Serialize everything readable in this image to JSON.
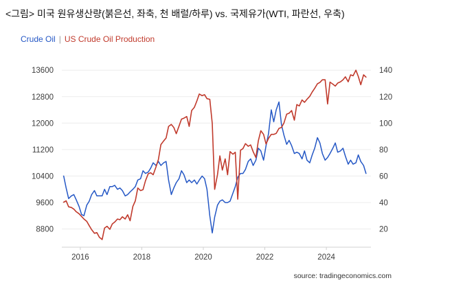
{
  "header": {
    "title": "<그림> 미국 원유생산량(붉은선, 좌축, 천 배럴/하루) vs. 국제유가(WTI, 파란선, 우축)"
  },
  "legend": {
    "crude_oil": "Crude Oil",
    "separator": "|",
    "production": "US Crude Oil Production"
  },
  "footer": {
    "source": "source: tradingeconomics.com"
  },
  "colors": {
    "wti_blue": "#2457c5",
    "production_red": "#c0392b",
    "grid": "#ececec",
    "axis_line": "#d0d0d0",
    "axis_text": "#3c3c3c",
    "legend_separator": "#9a9a9a"
  },
  "chart_data": {
    "type": "line",
    "title": "US Crude Oil Production vs Crude Oil (WTI)",
    "grid": "horizontal",
    "legend_position": "top-left",
    "x_axis": {
      "ticks": [
        2016,
        2018,
        2020,
        2022,
        2024
      ],
      "domain": [
        2015.4,
        2025.45
      ]
    },
    "left_axis": {
      "ticks": [
        8800,
        9600,
        10400,
        11200,
        12000,
        12800,
        13600
      ],
      "domain": [
        8250,
        13750
      ]
    },
    "right_axis": {
      "ticks": [
        20,
        40,
        60,
        80,
        100,
        120,
        140
      ],
      "domain": [
        6.25,
        143.75
      ]
    },
    "series": [
      {
        "name": "Crude Oil",
        "axis": "right",
        "color_key": "wti_blue",
        "points": [
          [
            2015.46,
            60
          ],
          [
            2015.54,
            51
          ],
          [
            2015.62,
            43
          ],
          [
            2015.71,
            45
          ],
          [
            2015.79,
            46
          ],
          [
            2015.87,
            42
          ],
          [
            2015.96,
            37
          ],
          [
            2016.04,
            31
          ],
          [
            2016.12,
            30
          ],
          [
            2016.21,
            38
          ],
          [
            2016.29,
            41
          ],
          [
            2016.37,
            46
          ],
          [
            2016.46,
            49
          ],
          [
            2016.54,
            45
          ],
          [
            2016.62,
            45
          ],
          [
            2016.71,
            45
          ],
          [
            2016.79,
            50
          ],
          [
            2016.87,
            46
          ],
          [
            2016.96,
            52
          ],
          [
            2017.04,
            52
          ],
          [
            2017.12,
            53
          ],
          [
            2017.21,
            50
          ],
          [
            2017.29,
            51
          ],
          [
            2017.37,
            49
          ],
          [
            2017.46,
            45
          ],
          [
            2017.54,
            46
          ],
          [
            2017.62,
            48
          ],
          [
            2017.71,
            50
          ],
          [
            2017.79,
            52
          ],
          [
            2017.87,
            57
          ],
          [
            2017.96,
            58
          ],
          [
            2018.04,
            64
          ],
          [
            2018.12,
            62
          ],
          [
            2018.21,
            63
          ],
          [
            2018.29,
            66
          ],
          [
            2018.37,
            70
          ],
          [
            2018.46,
            68
          ],
          [
            2018.54,
            71
          ],
          [
            2018.62,
            68
          ],
          [
            2018.71,
            70
          ],
          [
            2018.79,
            71
          ],
          [
            2018.87,
            57
          ],
          [
            2018.96,
            46
          ],
          [
            2019.04,
            51
          ],
          [
            2019.12,
            55
          ],
          [
            2019.21,
            58
          ],
          [
            2019.29,
            64
          ],
          [
            2019.37,
            61
          ],
          [
            2019.46,
            55
          ],
          [
            2019.54,
            57
          ],
          [
            2019.62,
            55
          ],
          [
            2019.71,
            57
          ],
          [
            2019.79,
            54
          ],
          [
            2019.87,
            57
          ],
          [
            2019.96,
            60
          ],
          [
            2020.04,
            58
          ],
          [
            2020.12,
            50
          ],
          [
            2020.21,
            30
          ],
          [
            2020.29,
            17
          ],
          [
            2020.37,
            29
          ],
          [
            2020.46,
            38
          ],
          [
            2020.54,
            41
          ],
          [
            2020.62,
            42
          ],
          [
            2020.71,
            40
          ],
          [
            2020.79,
            40
          ],
          [
            2020.87,
            41
          ],
          [
            2020.96,
            47
          ],
          [
            2021.04,
            52
          ],
          [
            2021.12,
            59
          ],
          [
            2021.21,
            62
          ],
          [
            2021.29,
            62
          ],
          [
            2021.37,
            65
          ],
          [
            2021.46,
            71
          ],
          [
            2021.54,
            73
          ],
          [
            2021.62,
            68
          ],
          [
            2021.71,
            72
          ],
          [
            2021.79,
            81
          ],
          [
            2021.87,
            79
          ],
          [
            2021.96,
            72
          ],
          [
            2022.04,
            83
          ],
          [
            2022.12,
            92
          ],
          [
            2022.21,
            110
          ],
          [
            2022.29,
            101
          ],
          [
            2022.37,
            110
          ],
          [
            2022.46,
            116
          ],
          [
            2022.54,
            99
          ],
          [
            2022.62,
            91
          ],
          [
            2022.71,
            84
          ],
          [
            2022.79,
            87
          ],
          [
            2022.87,
            83
          ],
          [
            2022.96,
            77
          ],
          [
            2023.04,
            78
          ],
          [
            2023.12,
            77
          ],
          [
            2023.21,
            73
          ],
          [
            2023.29,
            79
          ],
          [
            2023.37,
            72
          ],
          [
            2023.46,
            70
          ],
          [
            2023.54,
            76
          ],
          [
            2023.62,
            81
          ],
          [
            2023.71,
            89
          ],
          [
            2023.79,
            85
          ],
          [
            2023.87,
            77
          ],
          [
            2023.96,
            72
          ],
          [
            2024.04,
            74
          ],
          [
            2024.12,
            77
          ],
          [
            2024.21,
            81
          ],
          [
            2024.29,
            85
          ],
          [
            2024.37,
            78
          ],
          [
            2024.46,
            79
          ],
          [
            2024.54,
            81
          ],
          [
            2024.62,
            75
          ],
          [
            2024.71,
            69
          ],
          [
            2024.79,
            72
          ],
          [
            2024.87,
            69
          ],
          [
            2024.96,
            70
          ],
          [
            2025.04,
            76
          ],
          [
            2025.12,
            71
          ],
          [
            2025.21,
            68
          ],
          [
            2025.29,
            62
          ]
        ]
      },
      {
        "name": "US Crude Oil Production",
        "axis": "left",
        "color_key": "production_red",
        "points": [
          [
            2015.46,
            9610
          ],
          [
            2015.54,
            9650
          ],
          [
            2015.62,
            9470
          ],
          [
            2015.71,
            9450
          ],
          [
            2015.79,
            9400
          ],
          [
            2015.87,
            9320
          ],
          [
            2015.96,
            9260
          ],
          [
            2016.04,
            9180
          ],
          [
            2016.12,
            9100
          ],
          [
            2016.21,
            9030
          ],
          [
            2016.29,
            8900
          ],
          [
            2016.37,
            8780
          ],
          [
            2016.46,
            8670
          ],
          [
            2016.54,
            8690
          ],
          [
            2016.62,
            8550
          ],
          [
            2016.71,
            8480
          ],
          [
            2016.79,
            8830
          ],
          [
            2016.87,
            8880
          ],
          [
            2016.96,
            8790
          ],
          [
            2017.04,
            8950
          ],
          [
            2017.12,
            9010
          ],
          [
            2017.21,
            9100
          ],
          [
            2017.29,
            9080
          ],
          [
            2017.37,
            9170
          ],
          [
            2017.46,
            9100
          ],
          [
            2017.54,
            9230
          ],
          [
            2017.62,
            9050
          ],
          [
            2017.71,
            9480
          ],
          [
            2017.79,
            9650
          ],
          [
            2017.87,
            10040
          ],
          [
            2017.96,
            9960
          ],
          [
            2018.04,
            9990
          ],
          [
            2018.12,
            10260
          ],
          [
            2018.21,
            10470
          ],
          [
            2018.29,
            10500
          ],
          [
            2018.37,
            10440
          ],
          [
            2018.46,
            10670
          ],
          [
            2018.54,
            10900
          ],
          [
            2018.62,
            11350
          ],
          [
            2018.71,
            11460
          ],
          [
            2018.79,
            11550
          ],
          [
            2018.87,
            11900
          ],
          [
            2018.96,
            11960
          ],
          [
            2019.04,
            11870
          ],
          [
            2019.12,
            11680
          ],
          [
            2019.21,
            11910
          ],
          [
            2019.29,
            12120
          ],
          [
            2019.37,
            12150
          ],
          [
            2019.46,
            12200
          ],
          [
            2019.54,
            11900
          ],
          [
            2019.62,
            12380
          ],
          [
            2019.71,
            12480
          ],
          [
            2019.79,
            12670
          ],
          [
            2019.87,
            12880
          ],
          [
            2019.96,
            12830
          ],
          [
            2020.04,
            12860
          ],
          [
            2020.12,
            12740
          ],
          [
            2020.21,
            12720
          ],
          [
            2020.29,
            11990
          ],
          [
            2020.37,
            10000
          ],
          [
            2020.46,
            10440
          ],
          [
            2020.54,
            11010
          ],
          [
            2020.62,
            10580
          ],
          [
            2020.71,
            10920
          ],
          [
            2020.79,
            10440
          ],
          [
            2020.87,
            11140
          ],
          [
            2020.96,
            11060
          ],
          [
            2021.04,
            11120
          ],
          [
            2021.12,
            9700
          ],
          [
            2021.21,
            11180
          ],
          [
            2021.29,
            11230
          ],
          [
            2021.37,
            11380
          ],
          [
            2021.46,
            11300
          ],
          [
            2021.54,
            11340
          ],
          [
            2021.62,
            11140
          ],
          [
            2021.71,
            10960
          ],
          [
            2021.79,
            11470
          ],
          [
            2021.87,
            11770
          ],
          [
            2021.96,
            11660
          ],
          [
            2022.04,
            11370
          ],
          [
            2022.12,
            11540
          ],
          [
            2022.21,
            11660
          ],
          [
            2022.29,
            11660
          ],
          [
            2022.37,
            11690
          ],
          [
            2022.46,
            11840
          ],
          [
            2022.54,
            11870
          ],
          [
            2022.62,
            12000
          ],
          [
            2022.71,
            12270
          ],
          [
            2022.79,
            12300
          ],
          [
            2022.87,
            12380
          ],
          [
            2022.96,
            12090
          ],
          [
            2023.04,
            12560
          ],
          [
            2023.12,
            12520
          ],
          [
            2023.21,
            12700
          ],
          [
            2023.29,
            12630
          ],
          [
            2023.37,
            12720
          ],
          [
            2023.46,
            12810
          ],
          [
            2023.54,
            12940
          ],
          [
            2023.62,
            13050
          ],
          [
            2023.71,
            13190
          ],
          [
            2023.79,
            13230
          ],
          [
            2023.87,
            13310
          ],
          [
            2023.96,
            13310
          ],
          [
            2024.04,
            12580
          ],
          [
            2024.12,
            13240
          ],
          [
            2024.21,
            13180
          ],
          [
            2024.29,
            13120
          ],
          [
            2024.37,
            13210
          ],
          [
            2024.46,
            13250
          ],
          [
            2024.54,
            13310
          ],
          [
            2024.62,
            13400
          ],
          [
            2024.71,
            13250
          ],
          [
            2024.79,
            13460
          ],
          [
            2024.87,
            13430
          ],
          [
            2024.96,
            13600
          ],
          [
            2025.04,
            13410
          ],
          [
            2025.12,
            13160
          ],
          [
            2025.21,
            13460
          ],
          [
            2025.29,
            13390
          ]
        ]
      }
    ]
  }
}
